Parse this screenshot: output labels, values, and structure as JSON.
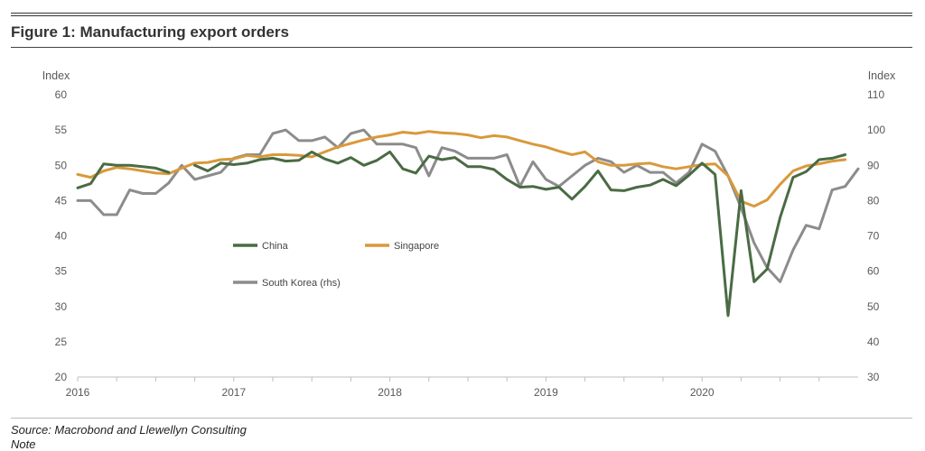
{
  "figure": {
    "title": "Figure 1: Manufacturing export orders",
    "source": "Source: Macrobond and Llewellyn Consulting",
    "note": "Note"
  },
  "colors": {
    "china": "#4a6b44",
    "singapore": "#d9993b",
    "korea": "#8c8c8c",
    "axis": "#bfbfbf",
    "text": "#595959"
  },
  "chart_data": {
    "type": "line",
    "title": "Manufacturing export orders",
    "ylabel_left": "Index",
    "ylabel_right": "Index",
    "ylim_left": [
      20,
      60
    ],
    "ylim_right": [
      30,
      110
    ],
    "yticks_left": [
      20,
      25,
      30,
      35,
      40,
      45,
      50,
      55,
      60
    ],
    "yticks_right": [
      30,
      40,
      50,
      60,
      70,
      80,
      90,
      100,
      110
    ],
    "xlim": [
      2016,
      2021
    ],
    "xticks": [
      "2016",
      "2017",
      "2018",
      "2019",
      "2020"
    ],
    "grid": false,
    "series": [
      {
        "name": "China",
        "axis": "left",
        "start": 2016.0,
        "values": [
          46.8,
          47.4,
          50.2,
          50.0,
          50.0,
          49.8,
          49.6,
          49.0,
          null,
          50.0,
          49.2,
          50.3,
          50.1,
          50.3,
          50.8,
          51.0,
          50.6,
          50.7,
          51.9,
          50.9,
          50.3,
          51.1,
          50.0,
          50.7,
          51.9,
          49.5,
          48.9,
          51.3,
          50.8,
          51.1,
          49.8,
          49.8,
          49.4,
          48.0,
          46.9,
          47.0,
          46.6,
          46.9,
          45.2,
          47.0,
          49.2,
          46.5,
          46.4,
          46.9,
          47.2,
          48.0,
          47.1,
          48.6,
          50.3,
          48.7,
          28.7,
          46.4,
          33.5,
          35.3,
          42.6,
          48.3,
          49.1,
          50.8,
          51.0,
          51.5
        ]
      },
      {
        "name": "Singapore",
        "axis": "left",
        "start": 2016.0,
        "values": [
          48.7,
          48.3,
          49.2,
          49.7,
          49.5,
          49.2,
          48.9,
          48.8,
          49.6,
          50.3,
          50.4,
          50.8,
          50.9,
          51.4,
          51.2,
          51.5,
          51.5,
          51.4,
          51.2,
          51.9,
          52.6,
          53.1,
          53.6,
          54.0,
          54.3,
          54.7,
          54.5,
          54.8,
          54.6,
          54.5,
          54.3,
          53.9,
          54.2,
          54.0,
          53.5,
          53.0,
          52.6,
          52.0,
          51.5,
          51.9,
          50.5,
          50.0,
          50.0,
          50.2,
          50.3,
          49.8,
          49.5,
          49.8,
          50.1,
          50.2,
          48.5,
          44.9,
          44.2,
          45.1,
          47.3,
          49.2,
          49.9,
          50.2,
          50.6,
          50.8
        ]
      },
      {
        "name": "South Korea (rhs)",
        "axis": "right",
        "start": 2016.0,
        "values": [
          80.0,
          80.0,
          76.0,
          76.0,
          83.0,
          82.0,
          82.0,
          85.0,
          90.0,
          86.0,
          87.0,
          88.0,
          92.0,
          93.0,
          93.0,
          99.0,
          100.0,
          97.0,
          97.0,
          98.0,
          95.0,
          99.0,
          100.0,
          96.0,
          96.0,
          96.0,
          95.0,
          87.0,
          95.0,
          94.0,
          92.0,
          92.0,
          92.0,
          93.0,
          84.0,
          91.0,
          86.0,
          84.0,
          87.0,
          90.0,
          92.0,
          91.0,
          88.0,
          90.0,
          88.0,
          88.0,
          85.0,
          88.0,
          96.0,
          94.0,
          87.0,
          78.0,
          68.0,
          61.0,
          57.0,
          66.0,
          73.0,
          72.0,
          83.0,
          84.0,
          89.0
        ]
      }
    ]
  }
}
